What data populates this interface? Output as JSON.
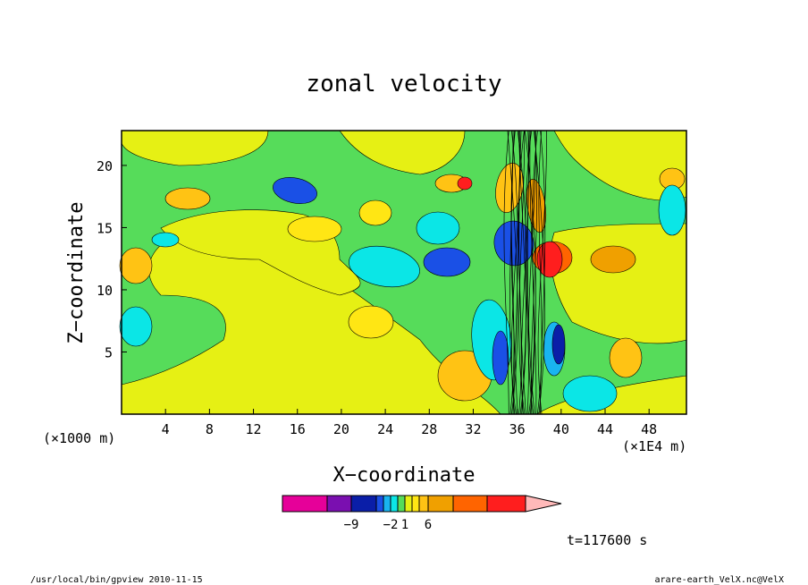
{
  "chart_data": {
    "type": "heatmap",
    "title": "zonal velocity",
    "xlabel": "X−coordinate",
    "ylabel": "Z−coordinate",
    "x_unit": "(×1E4 m)",
    "y_unit": "(×1000 m)",
    "xlim": [
      0,
      51.4
    ],
    "ylim": [
      0,
      22.8
    ],
    "x_ticks": [
      "4",
      "8",
      "12",
      "16",
      "20",
      "24",
      "28",
      "32",
      "36",
      "40",
      "44",
      "48"
    ],
    "y_ticks": [
      "5",
      "10",
      "15",
      "20"
    ],
    "colorbar": {
      "colors": [
        "#e60099",
        "#7a0fb0",
        "#0a1ea8",
        "#1a50e6",
        "#19b4f0",
        "#0be6e6",
        "#56dc5a",
        "#e6f014",
        "#ffe614",
        "#ffc314",
        "#f0a000",
        "#ff6400",
        "#ff1e1e",
        "#ff7878",
        "#ffb9b9"
      ],
      "labels": [
        {
          "text": "−9",
          "after": 2
        },
        {
          "text": "−2",
          "after": 5
        },
        {
          "text": "1",
          "after": 7
        },
        {
          "text": "6",
          "after": 10
        }
      ]
    },
    "time_label": "t=117600 s"
  },
  "footer": {
    "left": "/usr/local/bin/gpview  2010-11-15",
    "right": "arare-earth_VelX.nc@VelX"
  }
}
